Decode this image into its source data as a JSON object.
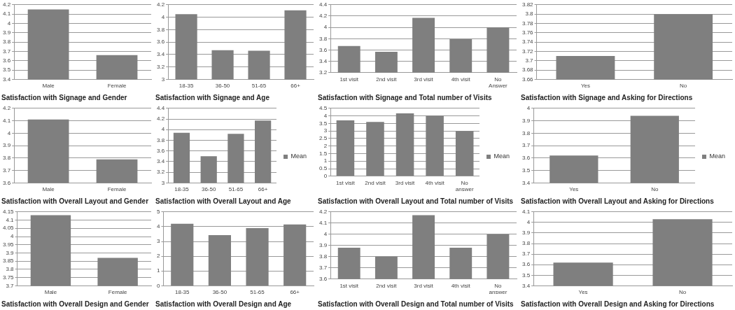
{
  "chart_data": [
    {
      "type": "bar",
      "title": "Satisfaction with Signage and Gender",
      "categories": [
        "Male",
        "Female"
      ],
      "values": [
        4.15,
        3.66
      ],
      "color": "#7f7f7f",
      "ylim": [
        3.4,
        4.2
      ],
      "yticks": [
        3.4,
        3.5,
        3.6,
        3.7,
        3.8,
        3.9,
        4,
        4.1,
        4.2
      ],
      "grid": "y"
    },
    {
      "type": "bar",
      "title": "Satisfaction with Signage and Age",
      "categories": [
        "18-35",
        "36-50",
        "51-65",
        "66+"
      ],
      "values": [
        4.05,
        3.47,
        3.46,
        4.11
      ],
      "color": "#7f7f7f",
      "ylim": [
        3,
        4.2
      ],
      "yticks": [
        3,
        3.2,
        3.4,
        3.6,
        3.8,
        4,
        4.2
      ],
      "grid": "y"
    },
    {
      "type": "bar",
      "title": "Satisfaction with Signage and Total number of Visits",
      "categories": [
        "1st visit",
        "2nd visit",
        "3rd visit",
        "4th visit",
        "No Answer"
      ],
      "values": [
        3.67,
        3.57,
        4.17,
        3.79,
        4.0
      ],
      "color": "#7f7f7f",
      "ylim": [
        3.2,
        4.4
      ],
      "yticks": [
        3.2,
        3.4,
        3.6,
        3.8,
        4,
        4.2,
        4.4
      ],
      "grid": "y"
    },
    {
      "type": "bar",
      "title": "Satisfaction with Signage and Asking for Directions",
      "categories": [
        "Yes",
        "No"
      ],
      "values": [
        3.71,
        3.8
      ],
      "color": "#7f7f7f",
      "ylim": [
        3.66,
        3.82
      ],
      "yticks": [
        3.66,
        3.68,
        3.7,
        3.72,
        3.74,
        3.76,
        3.78,
        3.8,
        3.82
      ],
      "grid": "y"
    },
    {
      "type": "bar",
      "title": "Satisfaction with Overall Layout and Gender",
      "categories": [
        "Male",
        "Female"
      ],
      "values": [
        4.11,
        3.79
      ],
      "color": "#7f7f7f",
      "ylim": [
        3.6,
        4.2
      ],
      "yticks": [
        3.6,
        3.7,
        3.8,
        3.9,
        4,
        4.1,
        4.2
      ],
      "grid": "y"
    },
    {
      "type": "bar",
      "title": "Satisfaction with Overall Layout and Age",
      "categories": [
        "18-35",
        "36-50",
        "51-65",
        "66+"
      ],
      "series": [
        {
          "name": "Mean",
          "color": "#7f7f7f",
          "values": [
            3.94,
            3.5,
            3.92,
            4.17
          ]
        }
      ],
      "ylim": [
        3,
        4.4
      ],
      "yticks": [
        3,
        3.2,
        3.4,
        3.6,
        3.8,
        4,
        4.2,
        4.4
      ],
      "grid": "y",
      "legend": "right"
    },
    {
      "type": "bar",
      "title": "Satisfaction with Overall Layout and Total number of Visits",
      "categories": [
        "1st visit",
        "2nd visit",
        "3rd visit",
        "4th visit",
        "No answer"
      ],
      "series": [
        {
          "name": "Mean",
          "color": "#7f7f7f",
          "values": [
            3.7,
            3.6,
            4.17,
            4.0,
            3.0
          ]
        }
      ],
      "ylim": [
        0,
        4.5
      ],
      "yticks": [
        0,
        0.5,
        1,
        1.5,
        2,
        2.5,
        3,
        3.5,
        4,
        4.5
      ],
      "grid": "y",
      "legend": "right"
    },
    {
      "type": "bar",
      "title": "Satisfaction with Overall Layout and Asking for Directions",
      "categories": [
        "Yes",
        "No"
      ],
      "series": [
        {
          "name": "Mean",
          "color": "#7f7f7f",
          "values": [
            3.62,
            3.94
          ]
        }
      ],
      "ylim": [
        3.4,
        4
      ],
      "yticks": [
        3.4,
        3.5,
        3.6,
        3.7,
        3.8,
        3.9,
        4
      ],
      "grid": "y",
      "legend": "right"
    },
    {
      "type": "bar",
      "title": "Satisfaction with Overall Design and Gender",
      "categories": [
        "Male",
        "Female"
      ],
      "values": [
        4.13,
        3.87
      ],
      "color": "#7f7f7f",
      "ylim": [
        3.7,
        4.15
      ],
      "yticks": [
        3.7,
        3.75,
        3.8,
        3.85,
        3.9,
        3.95,
        4,
        4.05,
        4.1,
        4.15
      ],
      "grid": "y"
    },
    {
      "type": "bar",
      "title": "Satisfaction with Overall Design and Age",
      "categories": [
        "18-35",
        "36-50",
        "51-65",
        "66+"
      ],
      "values": [
        4.2,
        3.43,
        3.9,
        4.15
      ],
      "color": "#7f7f7f",
      "ylim": [
        0,
        5
      ],
      "yticks": [
        0,
        1,
        2,
        3,
        4,
        5
      ],
      "grid": "y"
    },
    {
      "type": "bar",
      "title": "Satisfaction with Overall Design and Total number of Visits",
      "categories": [
        "1st visit",
        "2nd visit",
        "3rd visit",
        "4th visit",
        "No answer"
      ],
      "values": [
        3.88,
        3.8,
        4.17,
        3.88,
        4.0
      ],
      "color": "#7f7f7f",
      "ylim": [
        3.6,
        4.2
      ],
      "yticks": [
        3.6,
        3.7,
        3.8,
        3.9,
        4,
        4.1,
        4.2
      ],
      "grid": "y"
    },
    {
      "type": "bar",
      "title": "Satisfaction with Overall Design and Asking for Directions",
      "categories": [
        "Yes",
        "No"
      ],
      "values": [
        3.62,
        4.03
      ],
      "color": "#7f7f7f",
      "ylim": [
        3.4,
        4.1
      ],
      "yticks": [
        3.4,
        3.5,
        3.6,
        3.7,
        3.8,
        3.9,
        4,
        4.1
      ],
      "grid": "y"
    }
  ]
}
